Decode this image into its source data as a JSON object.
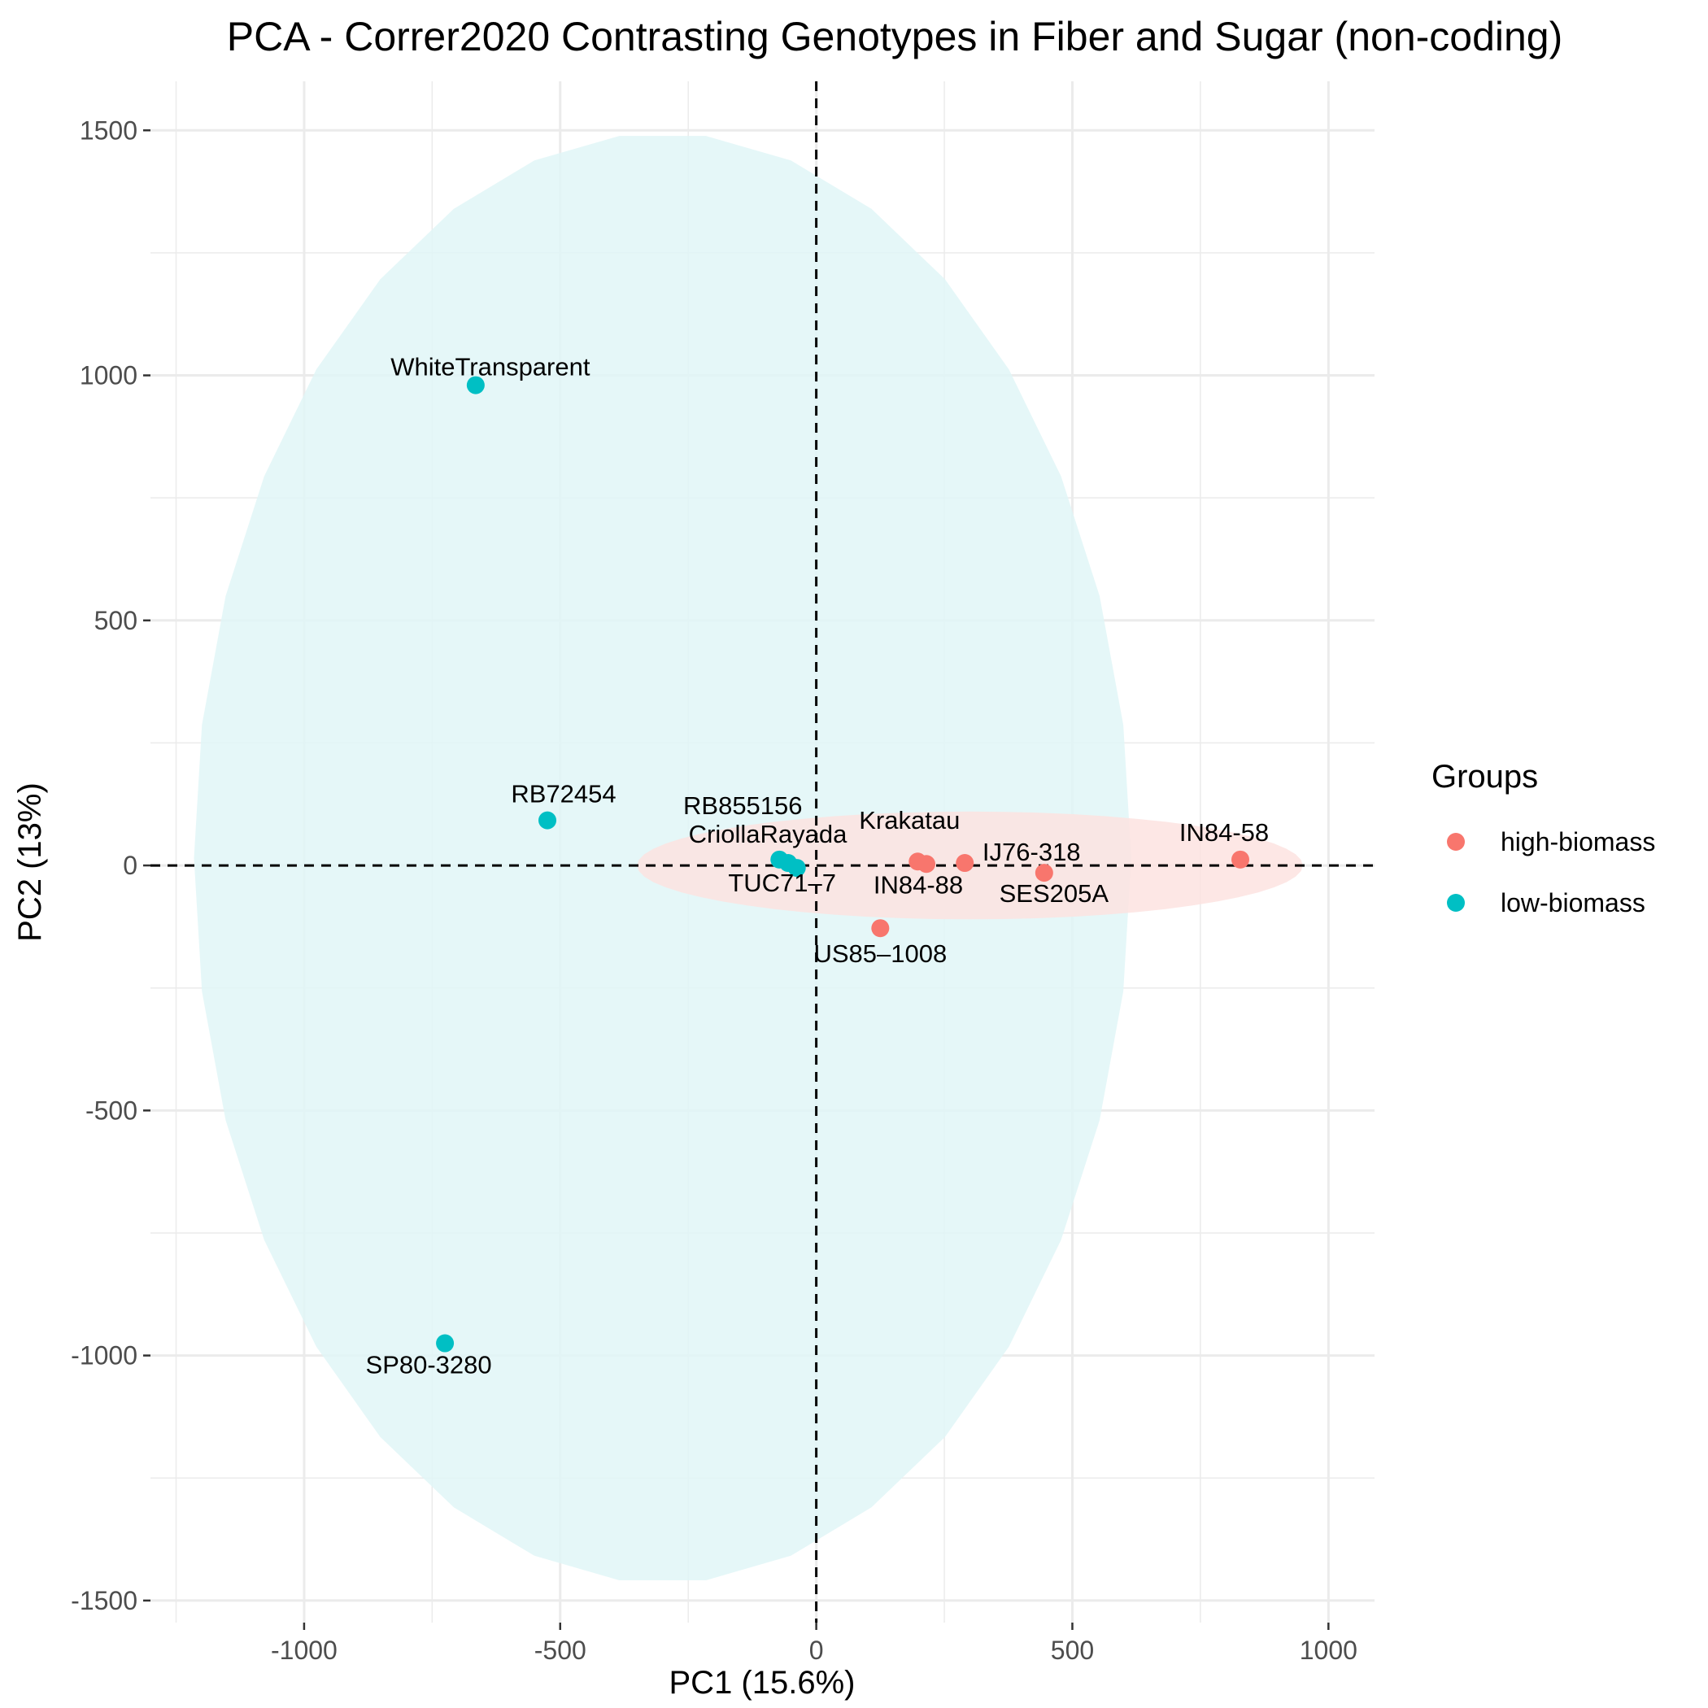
{
  "chart_data": {
    "type": "scatter",
    "title": "PCA - Correr2020 Contrasting Genotypes in Fiber and Sugar (non-coding)",
    "xlabel": "PC1 (15.6%)",
    "ylabel": "PC2 (13%)",
    "xlim": [
      -1300,
      1090
    ],
    "ylim": [
      -1545,
      1600
    ],
    "x_ticks": [
      -1000,
      -500,
      0,
      500,
      1000
    ],
    "y_ticks": [
      -1500,
      -1000,
      -500,
      0,
      500,
      1000,
      1500
    ],
    "grid": true,
    "reference_lines": {
      "x": 0,
      "y": 0,
      "style": "dashed"
    },
    "legend": {
      "title": "Groups",
      "position": "right",
      "entries": [
        {
          "label": "high-biomass",
          "color": "#F8766D"
        },
        {
          "label": "low-biomass",
          "color": "#00BFC4"
        }
      ]
    },
    "series": [
      {
        "name": "high-biomass",
        "color": "#F8766D",
        "ellipse_fill": "#FDE3E1",
        "ellipse": {
          "cx": 300,
          "cy": 0,
          "rx": 650,
          "ry": 110,
          "steps": 60
        },
        "points": [
          {
            "label": "Krakatau",
            "x": 198,
            "y": 8
          },
          {
            "label": "IN84-88",
            "x": 215,
            "y": 3
          },
          {
            "label": "IJ76-318",
            "x": 290,
            "y": 5
          },
          {
            "label": "SES205A",
            "x": 445,
            "y": -15
          },
          {
            "label": "US85–1008",
            "x": 125,
            "y": -128
          },
          {
            "label": "IN84-58",
            "x": 828,
            "y": 12
          }
        ]
      },
      {
        "name": "low-biomass",
        "color": "#00BFC4",
        "ellipse_fill": "#E1F6F7",
        "ellipse": {
          "cx": -300,
          "cy": 15,
          "rx": 915,
          "ry": 1480,
          "steps": 34
        },
        "points": [
          {
            "label": "WhiteTransparent",
            "x": -665,
            "y": 980
          },
          {
            "label": "RB72454",
            "x": -525,
            "y": 92
          },
          {
            "label": "RB855156",
            "x": -72,
            "y": 12
          },
          {
            "label": "CriollaRayada",
            "x": -55,
            "y": 5
          },
          {
            "label": "TUC71–7",
            "x": -38,
            "y": -5
          },
          {
            "label": "SP80-3280",
            "x": -725,
            "y": -975
          }
        ]
      }
    ]
  }
}
